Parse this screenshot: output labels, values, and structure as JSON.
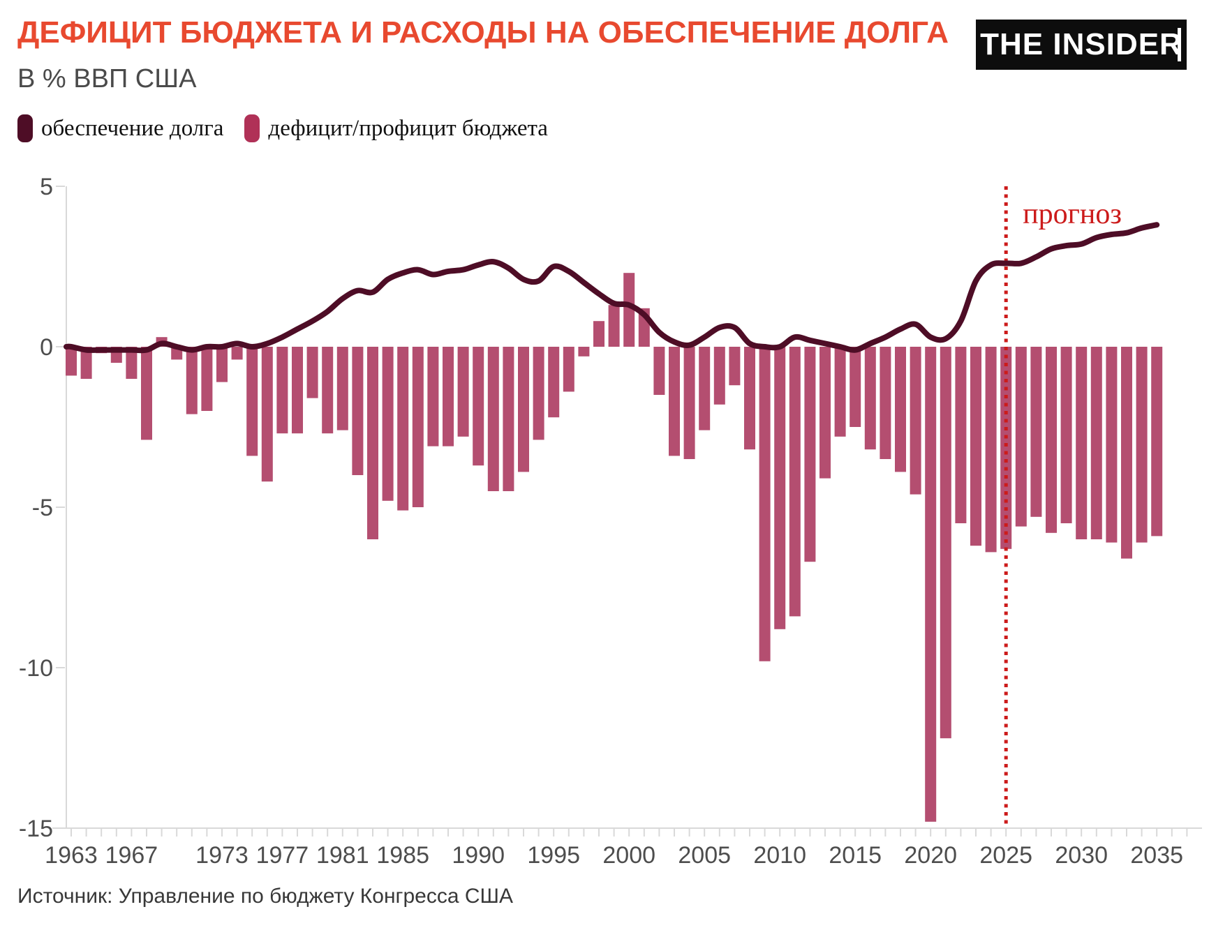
{
  "header": {
    "title": "ДЕФИЦИТ БЮДЖЕТА И РАСХОДЫ НА ОБЕСПЕЧЕНИЕ ДОЛГА",
    "subtitle": "В % ВВП США",
    "logo_text": "THE INSIDER"
  },
  "legend": {
    "items": [
      {
        "label": "обеспечение долга",
        "color": "#4e0d26"
      },
      {
        "label": "дефицит/профицит бюджета",
        "color": "#b03157"
      }
    ]
  },
  "source": "Источник: Управление по бюджету Конгресса США",
  "chart_data": {
    "type": "combo",
    "title": "ДЕФИЦИТ БЮДЖЕТА И РАСХОДЫ НА ОБЕСПЕЧЕНИЕ ДОЛГА",
    "subtitle": "В % ВВП США",
    "ylabel": "% ВВП США",
    "ylim": [
      -15,
      5
    ],
    "y_ticks": [
      5,
      0,
      -5,
      -10,
      -15
    ],
    "grid": false,
    "legend_position": "top-left",
    "x": [
      1963,
      1964,
      1965,
      1966,
      1967,
      1968,
      1969,
      1970,
      1971,
      1972,
      1973,
      1974,
      1975,
      1976,
      1977,
      1978,
      1979,
      1980,
      1981,
      1982,
      1983,
      1984,
      1985,
      1986,
      1987,
      1988,
      1989,
      1990,
      1991,
      1992,
      1993,
      1994,
      1995,
      1996,
      1997,
      1998,
      1999,
      2000,
      2001,
      2002,
      2003,
      2004,
      2005,
      2006,
      2007,
      2008,
      2009,
      2010,
      2011,
      2012,
      2013,
      2014,
      2015,
      2016,
      2017,
      2018,
      2019,
      2020,
      2021,
      2022,
      2023,
      2024,
      2025,
      2026,
      2027,
      2028,
      2029,
      2030,
      2031,
      2032,
      2033,
      2034,
      2035
    ],
    "x_tick_labels": [
      "1963",
      "1967",
      "1973",
      "1977",
      "1981",
      "1985",
      "1990",
      "1995",
      "2000",
      "2005",
      "2010",
      "2015",
      "2020",
      "2025",
      "2030",
      "2035"
    ],
    "series": [
      {
        "name": "обеспечение долга",
        "type": "line",
        "color": "#4e0d26",
        "values": [
          0.0,
          -0.1,
          -0.1,
          -0.1,
          -0.1,
          -0.1,
          0.1,
          0.0,
          -0.1,
          0.0,
          0.0,
          0.1,
          0.0,
          0.1,
          0.3,
          0.55,
          0.8,
          1.1,
          1.5,
          1.75,
          1.7,
          2.1,
          2.3,
          2.4,
          2.25,
          2.35,
          2.4,
          2.55,
          2.65,
          2.45,
          2.1,
          2.05,
          2.5,
          2.35,
          2.0,
          1.65,
          1.35,
          1.3,
          1.0,
          0.45,
          0.15,
          0.05,
          0.3,
          0.6,
          0.6,
          0.1,
          0.0,
          0.0,
          0.3,
          0.2,
          0.1,
          0.0,
          -0.1,
          0.1,
          0.3,
          0.55,
          0.7,
          0.3,
          0.25,
          0.8,
          2.05,
          2.55,
          2.6,
          2.6,
          2.8,
          3.05,
          3.15,
          3.2,
          3.4,
          3.5,
          3.55,
          3.7,
          3.8
        ]
      },
      {
        "name": "дефицит/профицит бюджета",
        "type": "bar",
        "color": "#b44e70",
        "values": [
          -0.9,
          -1.0,
          -0.2,
          -0.5,
          -1.0,
          -2.9,
          0.3,
          -0.4,
          -2.1,
          -2.0,
          -1.1,
          -0.4,
          -3.4,
          -4.2,
          -2.7,
          -2.7,
          -1.6,
          -2.7,
          -2.6,
          -4.0,
          -6.0,
          -4.8,
          -5.1,
          -5.0,
          -3.1,
          -3.1,
          -2.8,
          -3.7,
          -4.5,
          -4.5,
          -3.9,
          -2.9,
          -2.2,
          -1.4,
          -0.3,
          0.8,
          1.3,
          2.3,
          1.2,
          -1.5,
          -3.4,
          -3.5,
          -2.6,
          -1.8,
          -1.2,
          -3.2,
          -9.8,
          -8.8,
          -8.4,
          -6.7,
          -4.1,
          -2.8,
          -2.5,
          -3.2,
          -3.5,
          -3.9,
          -4.6,
          -14.8,
          -12.2,
          -5.5,
          -6.2,
          -6.4,
          -6.3,
          -5.6,
          -5.3,
          -5.8,
          -5.5,
          -6.0,
          -6.0,
          -6.1,
          -6.6,
          -6.1,
          -5.9
        ]
      }
    ],
    "forecast": {
      "divider_year": 2025,
      "label": "прогноз",
      "color": "#cc1b1b"
    },
    "axis_color": "#d9d9d9",
    "tick_label_color": "#4d4d4d"
  }
}
